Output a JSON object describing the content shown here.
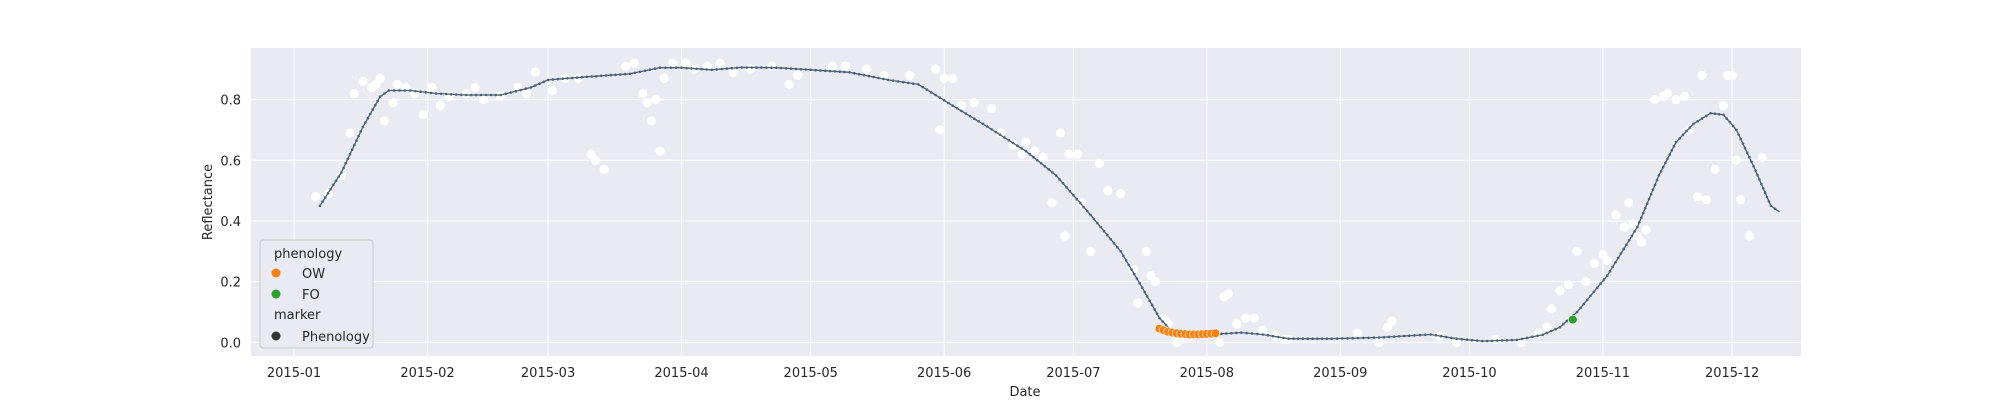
{
  "chart_data": {
    "type": "scatter",
    "xlabel": "Date",
    "ylabel": "Reflectance",
    "xlim": [
      "2014-12-22",
      "2015-12-17"
    ],
    "ylim": [
      -0.045,
      0.97
    ],
    "x_ticks": [
      "2015-01",
      "2015-02",
      "2015-03",
      "2015-04",
      "2015-05",
      "2015-06",
      "2015-07",
      "2015-08",
      "2015-09",
      "2015-10",
      "2015-11",
      "2015-12"
    ],
    "y_ticks": [
      "0.0",
      "0.2",
      "0.4",
      "0.6",
      "0.8"
    ],
    "grid": true,
    "background": "#eaeaf2",
    "legend_location": "lower-left",
    "legend": {
      "hue_title": "phenology",
      "hue_entries": [
        {
          "label": "OW",
          "color": "#ff7f0e"
        },
        {
          "label": "FO",
          "color": "#2ca02c"
        }
      ],
      "style_title": "marker",
      "style_entries": [
        {
          "label": "Phenology",
          "color": "#333333"
        }
      ]
    },
    "series": [
      {
        "role": "observations",
        "color": "#ffffff",
        "points": [
          [
            "2015-01-06",
            0.48
          ],
          [
            "2015-01-09",
            0.49
          ],
          [
            "2015-01-12",
            0.55
          ],
          [
            "2015-01-14",
            0.69
          ],
          [
            "2015-01-15",
            0.82
          ],
          [
            "2015-01-17",
            0.86
          ],
          [
            "2015-01-19",
            0.84
          ],
          [
            "2015-01-20",
            0.85
          ],
          [
            "2015-01-21",
            0.87
          ],
          [
            "2015-01-22",
            0.73
          ],
          [
            "2015-01-24",
            0.79
          ],
          [
            "2015-01-25",
            0.85
          ],
          [
            "2015-01-27",
            0.84
          ],
          [
            "2015-01-29",
            0.82
          ],
          [
            "2015-01-31",
            0.75
          ],
          [
            "2015-02-02",
            0.84
          ],
          [
            "2015-02-04",
            0.78
          ],
          [
            "2015-02-06",
            0.81
          ],
          [
            "2015-02-10",
            0.82
          ],
          [
            "2015-02-12",
            0.84
          ],
          [
            "2015-02-14",
            0.8
          ],
          [
            "2015-02-18",
            0.81
          ],
          [
            "2015-02-22",
            0.84
          ],
          [
            "2015-02-24",
            0.82
          ],
          [
            "2015-02-26",
            0.89
          ],
          [
            "2015-03-02",
            0.83
          ],
          [
            "2015-03-05",
            0.87
          ],
          [
            "2015-03-08",
            0.87
          ],
          [
            "2015-03-11",
            0.62
          ],
          [
            "2015-03-12",
            0.6
          ],
          [
            "2015-03-14",
            0.57
          ],
          [
            "2015-03-19",
            0.91
          ],
          [
            "2015-03-21",
            0.92
          ],
          [
            "2015-03-23",
            0.82
          ],
          [
            "2015-03-24",
            0.79
          ],
          [
            "2015-03-25",
            0.73
          ],
          [
            "2015-03-26",
            0.8
          ],
          [
            "2015-03-27",
            0.63
          ],
          [
            "2015-03-28",
            0.87
          ],
          [
            "2015-03-30",
            0.92
          ],
          [
            "2015-04-02",
            0.92
          ],
          [
            "2015-04-04",
            0.9
          ],
          [
            "2015-04-07",
            0.91
          ],
          [
            "2015-04-10",
            0.92
          ],
          [
            "2015-04-13",
            0.89
          ],
          [
            "2015-04-17",
            0.9
          ],
          [
            "2015-04-22",
            0.91
          ],
          [
            "2015-04-26",
            0.85
          ],
          [
            "2015-04-28",
            0.88
          ],
          [
            "2015-05-06",
            0.91
          ],
          [
            "2015-05-09",
            0.91
          ],
          [
            "2015-05-14",
            0.9
          ],
          [
            "2015-05-18",
            0.88
          ],
          [
            "2015-05-24",
            0.88
          ],
          [
            "2015-05-30",
            0.9
          ],
          [
            "2015-05-31",
            0.7
          ],
          [
            "2015-06-01",
            0.87
          ],
          [
            "2015-06-03",
            0.87
          ],
          [
            "2015-06-05",
            0.78
          ],
          [
            "2015-06-08",
            0.79
          ],
          [
            "2015-06-12",
            0.77
          ],
          [
            "2015-06-14",
            0.69
          ],
          [
            "2015-06-17",
            0.65
          ],
          [
            "2015-06-19",
            0.62
          ],
          [
            "2015-06-20",
            0.66
          ],
          [
            "2015-06-22",
            0.63
          ],
          [
            "2015-06-24",
            0.61
          ],
          [
            "2015-06-26",
            0.46
          ],
          [
            "2015-06-28",
            0.69
          ],
          [
            "2015-06-29",
            0.35
          ],
          [
            "2015-06-30",
            0.62
          ],
          [
            "2015-07-02",
            0.62
          ],
          [
            "2015-07-03",
            0.46
          ],
          [
            "2015-07-05",
            0.3
          ],
          [
            "2015-07-07",
            0.59
          ],
          [
            "2015-07-09",
            0.5
          ],
          [
            "2015-07-12",
            0.49
          ],
          [
            "2015-07-15",
            0.24
          ],
          [
            "2015-07-16",
            0.13
          ],
          [
            "2015-07-18",
            0.3
          ],
          [
            "2015-07-19",
            0.22
          ],
          [
            "2015-07-20",
            0.2
          ],
          [
            "2015-07-22",
            0.08
          ],
          [
            "2015-07-23",
            0.06
          ],
          [
            "2015-07-25",
            0.0
          ],
          [
            "2015-07-26",
            0.01
          ],
          [
            "2015-07-28",
            0.02
          ],
          [
            "2015-08-04",
            0.0
          ],
          [
            "2015-08-05",
            0.15
          ],
          [
            "2015-08-06",
            0.16
          ],
          [
            "2015-08-08",
            0.06
          ],
          [
            "2015-08-10",
            0.08
          ],
          [
            "2015-08-12",
            0.08
          ],
          [
            "2015-08-14",
            0.04
          ],
          [
            "2015-08-17",
            0.02
          ],
          [
            "2015-08-19",
            0.01
          ],
          [
            "2015-08-20",
            0.01
          ],
          [
            "2015-09-05",
            0.03
          ],
          [
            "2015-09-10",
            0.0
          ],
          [
            "2015-09-12",
            0.05
          ],
          [
            "2015-09-13",
            0.07
          ],
          [
            "2015-09-24",
            0.02
          ],
          [
            "2015-09-28",
            0.0
          ],
          [
            "2015-10-07",
            0.01
          ],
          [
            "2015-10-13",
            0.0
          ],
          [
            "2015-10-17",
            0.03
          ],
          [
            "2015-10-19",
            0.05
          ],
          [
            "2015-10-20",
            0.11
          ],
          [
            "2015-10-22",
            0.17
          ],
          [
            "2015-10-24",
            0.19
          ],
          [
            "2015-10-26",
            0.3
          ],
          [
            "2015-10-28",
            0.2
          ],
          [
            "2015-10-30",
            0.26
          ],
          [
            "2015-11-01",
            0.29
          ],
          [
            "2015-11-02",
            0.27
          ],
          [
            "2015-11-04",
            0.42
          ],
          [
            "2015-11-06",
            0.38
          ],
          [
            "2015-11-07",
            0.46
          ],
          [
            "2015-11-08",
            0.39
          ],
          [
            "2015-11-09",
            0.35
          ],
          [
            "2015-11-10",
            0.33
          ],
          [
            "2015-11-11",
            0.37
          ],
          [
            "2015-11-13",
            0.8
          ],
          [
            "2015-11-15",
            0.81
          ],
          [
            "2015-11-16",
            0.82
          ],
          [
            "2015-11-18",
            0.8
          ],
          [
            "2015-11-20",
            0.81
          ],
          [
            "2015-11-21",
            0.7
          ],
          [
            "2015-11-23",
            0.48
          ],
          [
            "2015-11-24",
            0.88
          ],
          [
            "2015-11-25",
            0.47
          ],
          [
            "2015-11-27",
            0.57
          ],
          [
            "2015-11-29",
            0.78
          ],
          [
            "2015-11-30",
            0.88
          ],
          [
            "2015-12-01",
            0.88
          ],
          [
            "2015-12-02",
            0.6
          ],
          [
            "2015-12-03",
            0.47
          ],
          [
            "2015-12-05",
            0.35
          ],
          [
            "2015-12-08",
            0.61
          ]
        ]
      },
      {
        "role": "smoothed-curve",
        "color": "#4c6275",
        "points": [
          [
            "2015-01-07",
            0.45
          ],
          [
            "2015-01-12",
            0.56
          ],
          [
            "2015-01-17",
            0.71
          ],
          [
            "2015-01-21",
            0.81
          ],
          [
            "2015-01-23",
            0.83
          ],
          [
            "2015-01-28",
            0.83
          ],
          [
            "2015-02-03",
            0.82
          ],
          [
            "2015-02-10",
            0.815
          ],
          [
            "2015-02-18",
            0.815
          ],
          [
            "2015-02-25",
            0.84
          ],
          [
            "2015-03-01",
            0.865
          ],
          [
            "2015-03-10",
            0.875
          ],
          [
            "2015-03-20",
            0.885
          ],
          [
            "2015-03-27",
            0.905
          ],
          [
            "2015-04-01",
            0.905
          ],
          [
            "2015-04-08",
            0.898
          ],
          [
            "2015-04-15",
            0.906
          ],
          [
            "2015-04-23",
            0.905
          ],
          [
            "2015-05-01",
            0.898
          ],
          [
            "2015-05-10",
            0.89
          ],
          [
            "2015-05-19",
            0.865
          ],
          [
            "2015-05-26",
            0.85
          ],
          [
            "2015-06-03",
            0.78
          ],
          [
            "2015-06-10",
            0.72
          ],
          [
            "2015-06-20",
            0.63
          ],
          [
            "2015-06-27",
            0.55
          ],
          [
            "2015-07-05",
            0.42
          ],
          [
            "2015-07-12",
            0.3
          ],
          [
            "2015-07-17",
            0.18
          ],
          [
            "2015-07-21",
            0.08
          ],
          [
            "2015-07-24",
            0.035
          ],
          [
            "2015-07-28",
            0.025
          ],
          [
            "2015-08-01",
            0.025
          ],
          [
            "2015-08-09",
            0.032
          ],
          [
            "2015-08-14",
            0.026
          ],
          [
            "2015-08-20",
            0.012
          ],
          [
            "2015-08-30",
            0.012
          ],
          [
            "2015-09-10",
            0.016
          ],
          [
            "2015-09-17",
            0.022
          ],
          [
            "2015-09-22",
            0.026
          ],
          [
            "2015-09-28",
            0.012
          ],
          [
            "2015-10-04",
            0.004
          ],
          [
            "2015-10-12",
            0.008
          ],
          [
            "2015-10-18",
            0.025
          ],
          [
            "2015-10-22",
            0.05
          ],
          [
            "2015-10-26",
            0.1
          ],
          [
            "2015-11-02",
            0.22
          ],
          [
            "2015-11-09",
            0.38
          ],
          [
            "2015-11-14",
            0.55
          ],
          [
            "2015-11-18",
            0.66
          ],
          [
            "2015-11-22",
            0.72
          ],
          [
            "2015-11-26",
            0.755
          ],
          [
            "2015-11-29",
            0.75
          ],
          [
            "2015-12-02",
            0.7
          ],
          [
            "2015-12-06",
            0.58
          ],
          [
            "2015-12-10",
            0.45
          ],
          [
            "2015-12-12",
            0.43
          ]
        ]
      },
      {
        "name": "OW",
        "role": "phenology",
        "color": "#ff7f0e",
        "points": [
          [
            "2015-07-21",
            0.045
          ],
          [
            "2015-07-22",
            0.04
          ],
          [
            "2015-07-23",
            0.035
          ],
          [
            "2015-07-24",
            0.032
          ],
          [
            "2015-07-25",
            0.03
          ],
          [
            "2015-07-26",
            0.028
          ],
          [
            "2015-07-27",
            0.027
          ],
          [
            "2015-07-28",
            0.026
          ],
          [
            "2015-07-29",
            0.026
          ],
          [
            "2015-07-30",
            0.026
          ],
          [
            "2015-07-31",
            0.027
          ],
          [
            "2015-08-01",
            0.028
          ],
          [
            "2015-08-02",
            0.029
          ],
          [
            "2015-08-03",
            0.03
          ]
        ]
      },
      {
        "name": "FO",
        "role": "phenology",
        "color": "#2ca02c",
        "points": [
          [
            "2015-10-25",
            0.075
          ]
        ]
      }
    ]
  }
}
